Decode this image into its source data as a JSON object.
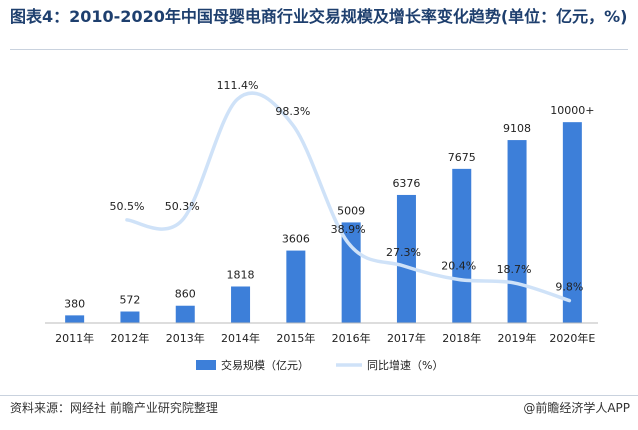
{
  "header": {
    "title": "图表4：2010-2020年中国母婴电商行业交易规模及增长率变化趋势(单位：亿元，%)"
  },
  "footer": {
    "source": "资料来源：网经社 前瞻产业研究院整理",
    "brand": "@前瞻经济学人APP"
  },
  "colors": {
    "bar": "#3d7fd9",
    "line": "#cfe2f8",
    "title": "#1e3f6e"
  },
  "chart_data": {
    "type": "bar",
    "categories": [
      "2011年",
      "2012年",
      "2013年",
      "2014年",
      "2015年",
      "2016年",
      "2017年",
      "2018年",
      "2019年",
      "2020年E"
    ],
    "series": [
      {
        "name": "交易规模（亿元）",
        "type": "bar",
        "values": [
          380,
          572,
          860,
          1818,
          3606,
          5009,
          6376,
          7675,
          9108,
          10000
        ],
        "labels": [
          "380",
          "572",
          "860",
          "1818",
          "3606",
          "5009",
          "6376",
          "7675",
          "9108",
          "10000+"
        ]
      },
      {
        "name": "同比增速（%）",
        "type": "line",
        "values": [
          null,
          50.5,
          50.3,
          111.4,
          98.3,
          38.9,
          27.3,
          20.4,
          18.7,
          9.8
        ],
        "labels": [
          "",
          "50.5%",
          "50.3%",
          "111.4%",
          "98.3%",
          "38.9%",
          "27.3%",
          "20.4%",
          "18.7%",
          "9.8%"
        ]
      }
    ],
    "ylim_bar": [
      0,
      12000
    ],
    "ylim_line": [
      0,
      120
    ]
  }
}
